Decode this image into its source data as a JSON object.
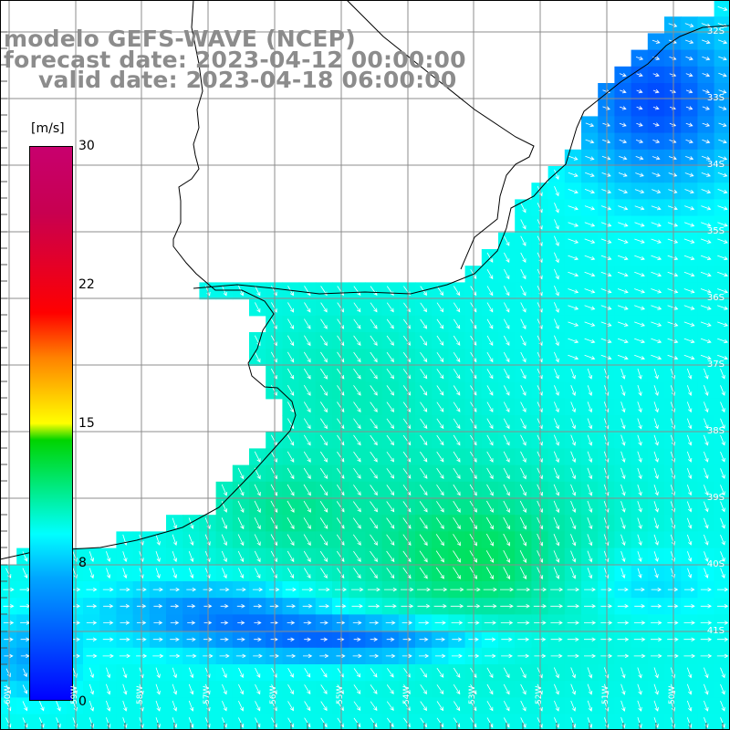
{
  "header": {
    "model_line": "modelo GEFS-WAVE (NCEP)",
    "forecast_line": "forecast date: 2023-04-12 00:00:00",
    "valid_line": "valid date: 2023-04-18 06:00:00"
  },
  "colorbar": {
    "unit": "[m/s]",
    "ticks": [
      "30",
      "22",
      "15",
      "8",
      "0"
    ],
    "range": [
      0,
      30
    ]
  },
  "grid_labels": {
    "lat": [
      "32S",
      "33S",
      "34S",
      "35S",
      "36S",
      "37S",
      "38S",
      "39S",
      "40S",
      "41S"
    ],
    "lon": [
      "60W",
      "59W",
      "58W",
      "57W",
      "56W",
      "55W",
      "54W",
      "53W",
      "52W",
      "51W",
      "50W"
    ]
  },
  "colors": {
    "land": "#ffffff",
    "grid": "#8c8c8c",
    "arrow": "#ffffff",
    "low_speed": "#0000ff",
    "mid_speed": "#00ffff",
    "high_speed": "#00d400"
  }
}
